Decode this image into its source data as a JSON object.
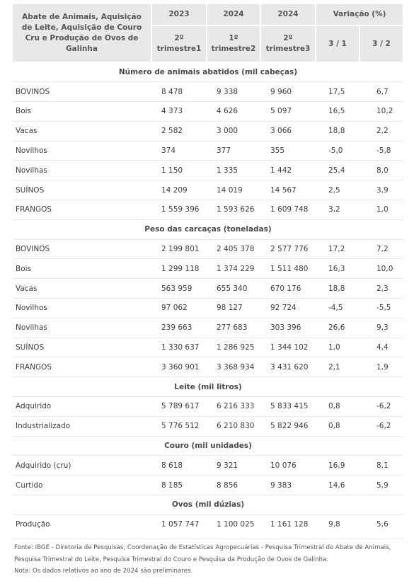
{
  "header": {
    "corner": "Abate de Animais, Aquisição de Leite, Aquisição de Couro Cru e Produção de Ovos de Galinha",
    "years": [
      "2023",
      "2024",
      "2024"
    ],
    "variation": "Variação (%)",
    "periods": [
      "2º trimestre1",
      "1º trimestre2",
      "2º trimestre3"
    ],
    "ratios": [
      "3 / 1",
      "3 / 2"
    ]
  },
  "sections": [
    {
      "title": "Número de animais abatidos (mil cabeças)",
      "rows": [
        {
          "label": "BOVINOS",
          "v": [
            "8 478",
            "9 338",
            "9 960",
            "17,5",
            "6,7"
          ]
        },
        {
          "label": "Bois",
          "v": [
            "4 373",
            "4 626",
            "5 097",
            "16,5",
            "10,2"
          ]
        },
        {
          "label": "Vacas",
          "v": [
            "2 582",
            "3 000",
            "3 066",
            "18,8",
            "2,2"
          ]
        },
        {
          "label": "Novilhos",
          "v": [
            "374",
            "377",
            "355",
            "-5,0",
            "-5,8"
          ]
        },
        {
          "label": "Novilhas",
          "v": [
            "1 150",
            "1 335",
            "1 442",
            "25,4",
            "8,0"
          ]
        },
        {
          "label": "SUÍNOS",
          "v": [
            "14 209",
            "14 019",
            "14 567",
            "2,5",
            "3,9"
          ]
        },
        {
          "label": "FRANGOS",
          "v": [
            "1 559 396",
            "1 593 626",
            "1 609 748",
            "3,2",
            "1,0"
          ]
        }
      ]
    },
    {
      "title": "Peso das carcaças (toneladas)",
      "rows": [
        {
          "label": "BOVINOS",
          "v": [
            "2 199 801",
            "2 405 378",
            "2 577 776",
            "17,2",
            "7,2"
          ]
        },
        {
          "label": "Bois",
          "v": [
            "1 299 118",
            "1 374 229",
            "1 511 480",
            "16,3",
            "10,0"
          ]
        },
        {
          "label": "Vacas",
          "v": [
            "563 959",
            "655 340",
            "670 176",
            "18,8",
            "2,3"
          ]
        },
        {
          "label": "Novilhos",
          "v": [
            "97 062",
            "98 127",
            "92 724",
            "-4,5",
            "-5,5"
          ]
        },
        {
          "label": "Novilhas",
          "v": [
            "239 663",
            "277 683",
            "303 396",
            "26,6",
            "9,3"
          ]
        },
        {
          "label": "SUÍNOS",
          "v": [
            "1 330 637",
            "1 286 925",
            "1 344 102",
            "1,0",
            "4,4"
          ]
        },
        {
          "label": "FRANGOS",
          "v": [
            "3 360 901",
            "3 368 934",
            "3 431 620",
            "2,1",
            "1,9"
          ]
        }
      ]
    },
    {
      "title": "Leite (mil litros)",
      "rows": [
        {
          "label": "Adquirido",
          "v": [
            "5 789 617",
            "6 216 333",
            "5 833 415",
            "0,8",
            "-6,2"
          ]
        },
        {
          "label": "Industrializado",
          "v": [
            "5 776 512",
            "6 210 830",
            "5 822 946",
            "0,8",
            "-6,2"
          ]
        }
      ]
    },
    {
      "title": "Couro (mil unidades)",
      "rows": [
        {
          "label": "Adquirido (cru)",
          "v": [
            "8 618",
            "9 321",
            "10 076",
            "16,9",
            "8,1"
          ]
        },
        {
          "label": "Curtido",
          "v": [
            "8 185",
            "8 856",
            "9 383",
            "14,6",
            "5,9"
          ]
        }
      ]
    },
    {
      "title": "Ovos (mil dúzias)",
      "rows": [
        {
          "label": "Produção",
          "v": [
            "1 057 747",
            "1 100 025",
            "1 161 128",
            "9,8",
            "5,6"
          ]
        }
      ]
    }
  ],
  "footer": {
    "source": "Fonte: IBGE - Diretoria de Pesquisas, Coordenação de Estatísticas Agropecuárias - Pesquisa Trimestral do Abate de Animais, Pesquisa Trimestral do Leite, Pesquisa Trimestral do Couro e Pesquisa da Produção de Ovos de Galinha.",
    "note": "Nota: Os dados relativos ao ano de 2024 são preliminares."
  }
}
